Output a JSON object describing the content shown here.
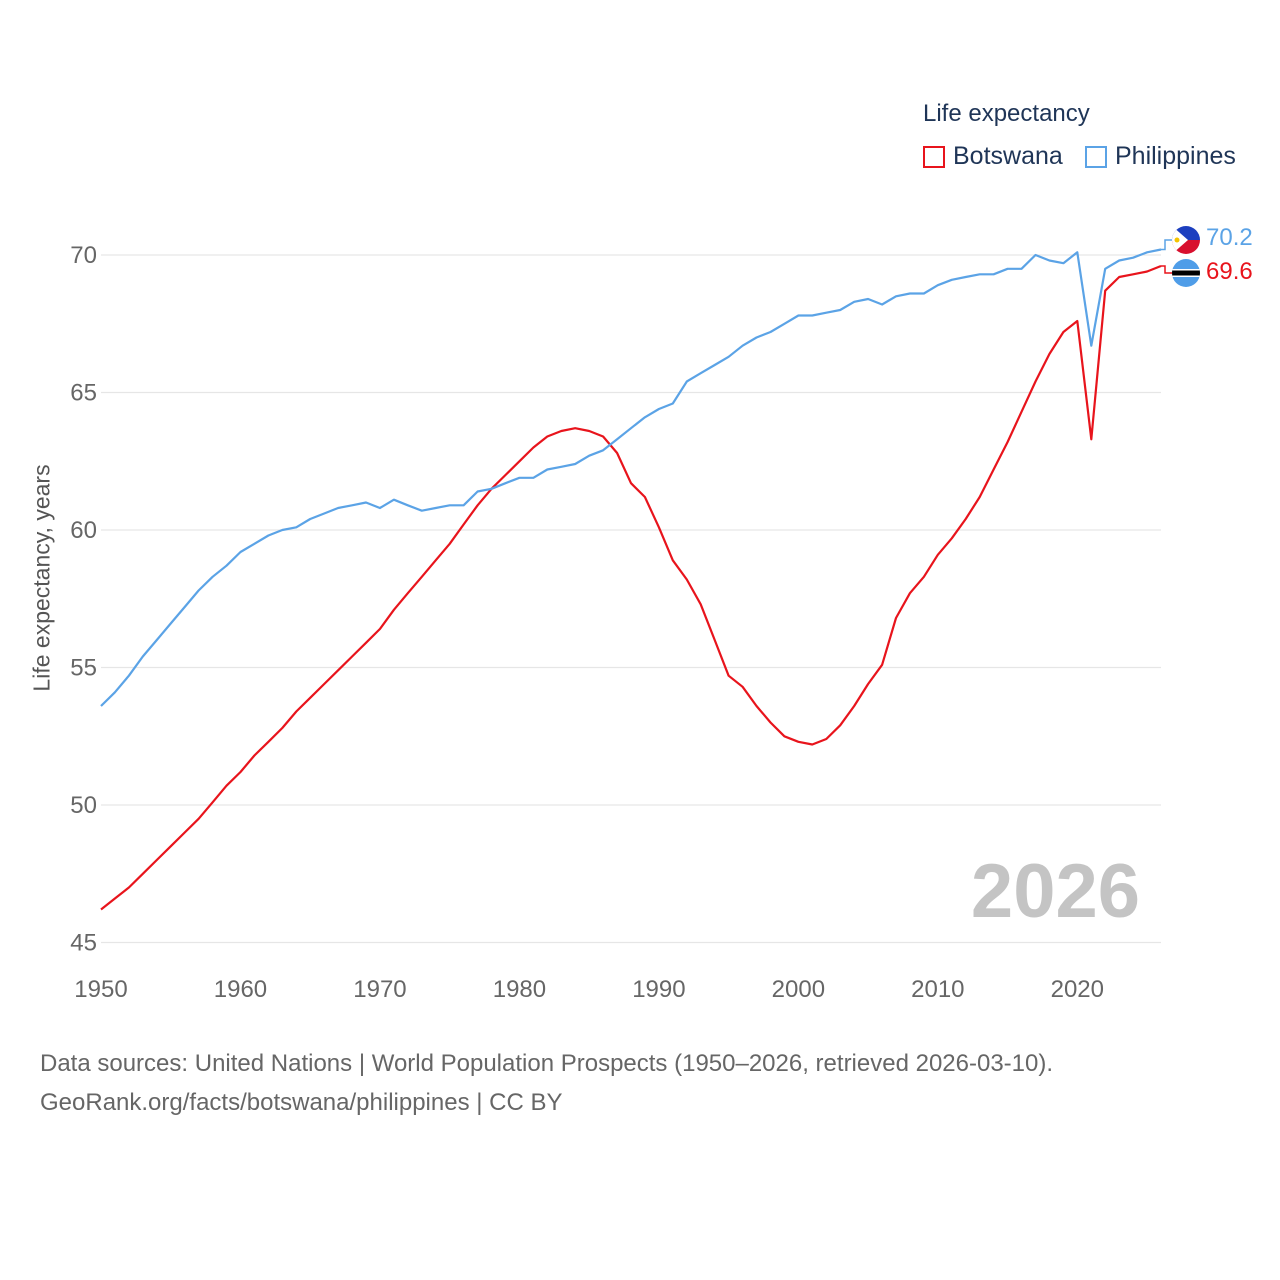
{
  "legend": {
    "title": "Life expectancy",
    "items": [
      {
        "name": "Botswana",
        "color": "#e8141c"
      },
      {
        "name": "Philippines",
        "color": "#5ba3e6"
      }
    ]
  },
  "source": {
    "line1": "Data sources: United Nations | World Population Prospects (1950–2026, retrieved 2026-03-10).",
    "line2": "GeoRank.org/facts/botswana/philippines | CC BY"
  },
  "year_label": "2026",
  "end_labels": {
    "philippines": "70.2",
    "botswana": "69.6"
  },
  "flags": {
    "philippines": "philippines-flag-icon",
    "botswana": "botswana-flag-icon"
  },
  "chart_data": {
    "type": "line",
    "title": "Life expectancy",
    "xlabel": "",
    "ylabel": "Life expectancy, years",
    "xlim": [
      1950,
      2026
    ],
    "ylim": [
      45,
      72
    ],
    "x_ticks": [
      1950,
      1960,
      1970,
      1980,
      1990,
      2000,
      2010,
      2020
    ],
    "y_ticks": [
      45,
      50,
      55,
      60,
      65,
      70
    ],
    "grid": true,
    "x": [
      1950,
      1951,
      1952,
      1953,
      1954,
      1955,
      1956,
      1957,
      1958,
      1959,
      1960,
      1961,
      1962,
      1963,
      1964,
      1965,
      1966,
      1967,
      1968,
      1969,
      1970,
      1971,
      1972,
      1973,
      1974,
      1975,
      1976,
      1977,
      1978,
      1979,
      1980,
      1981,
      1982,
      1983,
      1984,
      1985,
      1986,
      1987,
      1988,
      1989,
      1990,
      1991,
      1992,
      1993,
      1994,
      1995,
      1996,
      1997,
      1998,
      1999,
      2000,
      2001,
      2002,
      2003,
      2004,
      2005,
      2006,
      2007,
      2008,
      2009,
      2010,
      2011,
      2012,
      2013,
      2014,
      2015,
      2016,
      2017,
      2018,
      2019,
      2020,
      2021,
      2022,
      2023,
      2024,
      2025,
      2026
    ],
    "series": [
      {
        "name": "Botswana",
        "color": "#e8141c",
        "values": [
          46.2,
          46.6,
          47.0,
          47.5,
          48.0,
          48.5,
          49.0,
          49.5,
          50.1,
          50.7,
          51.2,
          51.8,
          52.3,
          52.8,
          53.4,
          53.9,
          54.4,
          54.9,
          55.4,
          55.9,
          56.4,
          57.1,
          57.7,
          58.3,
          58.9,
          59.5,
          60.2,
          60.9,
          61.5,
          62.0,
          62.5,
          63.0,
          63.4,
          63.6,
          63.7,
          63.6,
          63.4,
          62.8,
          61.7,
          61.2,
          60.1,
          58.9,
          58.2,
          57.3,
          56.0,
          54.7,
          54.3,
          53.6,
          53.0,
          52.5,
          52.3,
          52.2,
          52.4,
          52.9,
          53.6,
          54.4,
          55.1,
          56.8,
          57.7,
          58.3,
          59.1,
          59.7,
          60.4,
          61.2,
          62.2,
          63.2,
          64.3,
          65.4,
          66.4,
          67.2,
          67.6,
          63.3,
          68.7,
          69.2,
          69.3,
          69.4,
          69.6
        ]
      },
      {
        "name": "Philippines",
        "color": "#5ba3e6",
        "values": [
          53.6,
          54.1,
          54.7,
          55.4,
          56.0,
          56.6,
          57.2,
          57.8,
          58.3,
          58.7,
          59.2,
          59.5,
          59.8,
          60.0,
          60.1,
          60.4,
          60.6,
          60.8,
          60.9,
          61.0,
          60.8,
          61.1,
          60.9,
          60.7,
          60.8,
          60.9,
          60.9,
          61.4,
          61.5,
          61.7,
          61.9,
          61.9,
          62.2,
          62.3,
          62.4,
          62.7,
          62.9,
          63.3,
          63.7,
          64.1,
          64.4,
          64.6,
          65.4,
          65.7,
          66.0,
          66.3,
          66.7,
          67.0,
          67.2,
          67.5,
          67.8,
          67.8,
          67.9,
          68.0,
          68.3,
          68.4,
          68.2,
          68.5,
          68.6,
          68.6,
          68.9,
          69.1,
          69.2,
          69.3,
          69.3,
          69.5,
          69.5,
          70.0,
          69.8,
          69.7,
          70.1,
          66.7,
          69.5,
          69.8,
          69.9,
          70.1,
          70.2
        ]
      }
    ]
  }
}
